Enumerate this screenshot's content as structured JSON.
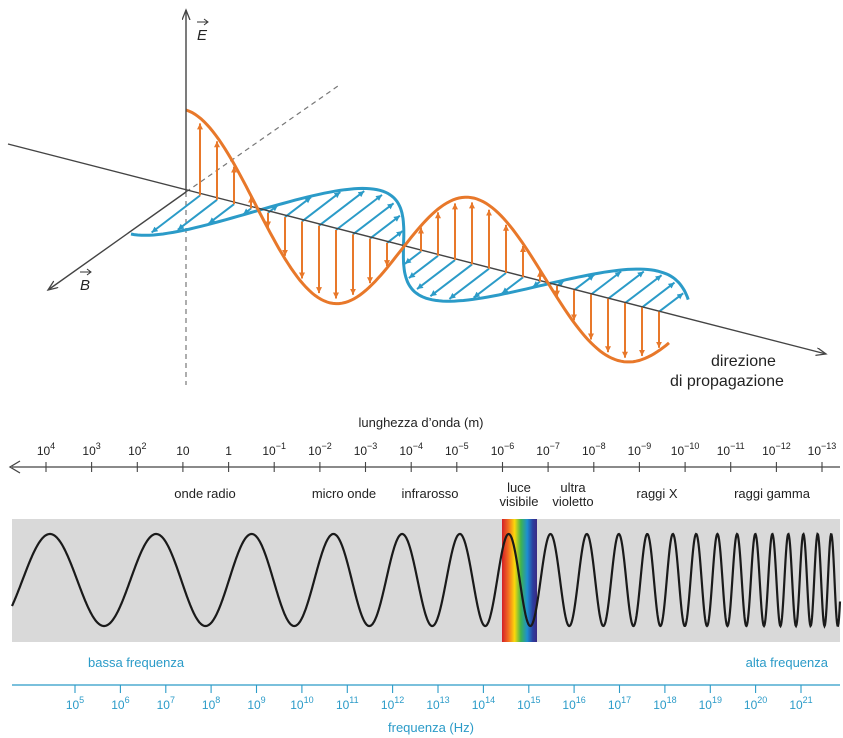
{
  "colors": {
    "e_field": "#e8782a",
    "b_field": "#2b9bc8",
    "axis": "#444444",
    "spectrum_band": "#d9d9d9",
    "frequency_scale": "#2b9bc8"
  },
  "wave_diagram": {
    "e_axis_label": "E",
    "b_axis_label": "B",
    "direction_label_line1": "direzione",
    "direction_label_line2": "di propagazione"
  },
  "wavelength_scale": {
    "title": "lunghezza d’onda (m)",
    "ticks": [
      {
        "base": "10",
        "exp": "4"
      },
      {
        "base": "10",
        "exp": "3"
      },
      {
        "base": "10",
        "exp": "2"
      },
      {
        "base": "10",
        "exp": ""
      },
      {
        "base": "1",
        "exp": ""
      },
      {
        "base": "10",
        "exp": "−1"
      },
      {
        "base": "10",
        "exp": "−2"
      },
      {
        "base": "10",
        "exp": "−3"
      },
      {
        "base": "10",
        "exp": "−4"
      },
      {
        "base": "10",
        "exp": "−5"
      },
      {
        "base": "10",
        "exp": "−6"
      },
      {
        "base": "10",
        "exp": "−7"
      },
      {
        "base": "10",
        "exp": "−8"
      },
      {
        "base": "10",
        "exp": "−9"
      },
      {
        "base": "10",
        "exp": "−10"
      },
      {
        "base": "10",
        "exp": "−11"
      },
      {
        "base": "10",
        "exp": "−12"
      },
      {
        "base": "10",
        "exp": "−13"
      }
    ]
  },
  "regions": [
    {
      "line1": "onde radio",
      "line2": ""
    },
    {
      "line1": "micro onde",
      "line2": ""
    },
    {
      "line1": "infrarosso",
      "line2": ""
    },
    {
      "line1": "luce",
      "line2": "visibile"
    },
    {
      "line1": "ultra",
      "line2": "violetto"
    },
    {
      "line1": "raggi X",
      "line2": ""
    },
    {
      "line1": "raggi gamma",
      "line2": ""
    }
  ],
  "frequency_scale": {
    "low_label": "bassa frequenza",
    "high_label": "alta frequenza",
    "title": "frequenza (Hz)",
    "ticks": [
      {
        "base": "10",
        "exp": "5"
      },
      {
        "base": "10",
        "exp": "6"
      },
      {
        "base": "10",
        "exp": "7"
      },
      {
        "base": "10",
        "exp": "8"
      },
      {
        "base": "10",
        "exp": "9"
      },
      {
        "base": "10",
        "exp": "10"
      },
      {
        "base": "10",
        "exp": "11"
      },
      {
        "base": "10",
        "exp": "12"
      },
      {
        "base": "10",
        "exp": "13"
      },
      {
        "base": "10",
        "exp": "14"
      },
      {
        "base": "10",
        "exp": "15"
      },
      {
        "base": "10",
        "exp": "16"
      },
      {
        "base": "10",
        "exp": "17"
      },
      {
        "base": "10",
        "exp": "18"
      },
      {
        "base": "10",
        "exp": "19"
      },
      {
        "base": "10",
        "exp": "20"
      },
      {
        "base": "10",
        "exp": "21"
      }
    ]
  }
}
